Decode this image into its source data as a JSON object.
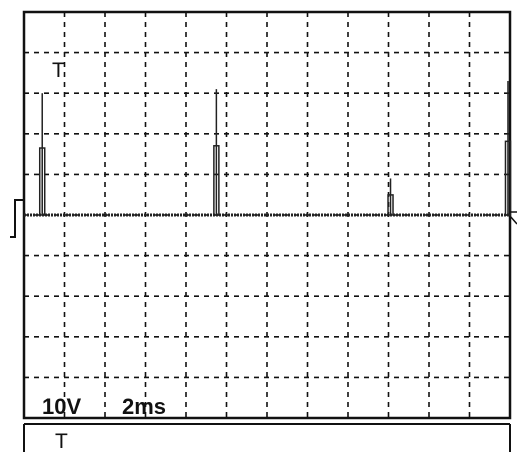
{
  "screen": {
    "trigger_marker": "T",
    "volts_per_div": "10V",
    "time_per_div": "2ms",
    "bottom_marker": "T"
  },
  "colors": {
    "trace": "#222222",
    "grid": "#111111",
    "background": "#ffffff"
  },
  "chart_data": {
    "type": "line",
    "title": "",
    "xlabel": "",
    "ylabel": "",
    "x_divisions": 12,
    "y_divisions": 10,
    "xlim": [
      0,
      24
    ],
    "ylim": [
      -50,
      50
    ],
    "x_unit": "ms",
    "y_unit": "V",
    "grid": true,
    "baseline_volts": 0,
    "spikes": [
      {
        "time_ms": 0.9,
        "peak_volts": 30
      },
      {
        "time_ms": 9.5,
        "peak_volts": 31
      },
      {
        "time_ms": 18.1,
        "peak_volts": 9
      },
      {
        "time_ms": 26.9,
        "peak_volts": 33
      }
    ]
  }
}
